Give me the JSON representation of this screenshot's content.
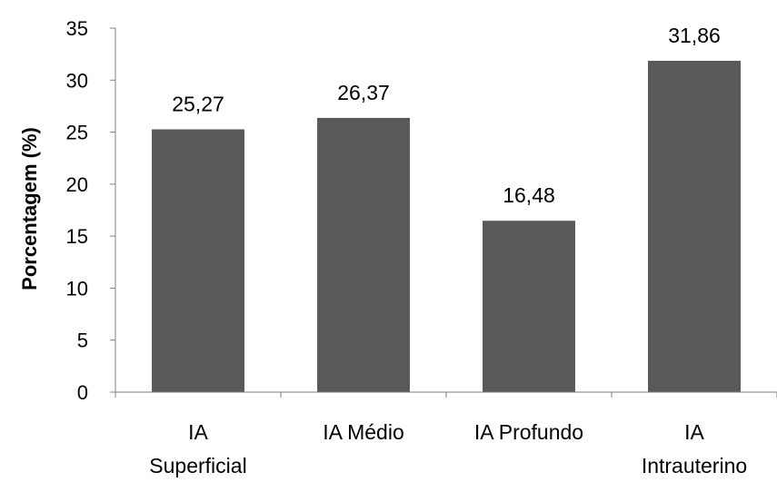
{
  "chart_data": {
    "type": "bar",
    "title": "",
    "xlabel": "",
    "ylabel": "Porcentagem (%)",
    "ylim": [
      0,
      35
    ],
    "yticks": [
      "0",
      "5",
      "10",
      "15",
      "20",
      "25",
      "30",
      "35"
    ],
    "categories": [
      [
        "IA",
        "Superficial"
      ],
      [
        "IA Médio"
      ],
      [
        "IA Profundo"
      ],
      [
        "IA",
        "Intrauterino"
      ]
    ],
    "values": [
      25.27,
      26.37,
      16.48,
      31.86
    ],
    "value_labels": [
      "25,27",
      "26,37",
      "16,48",
      "31,86"
    ],
    "bar_color": "#595959",
    "grid": false,
    "legend": "none"
  }
}
